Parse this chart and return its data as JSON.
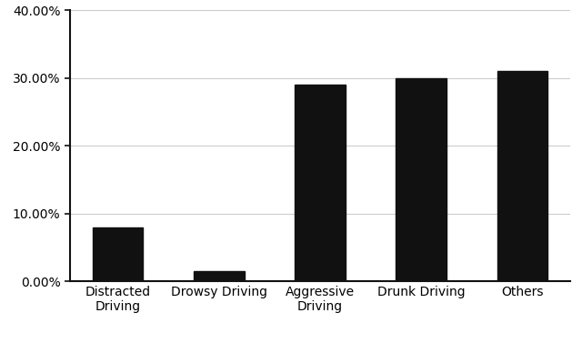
{
  "categories": [
    "Distracted\nDriving",
    "Drowsy Driving",
    "Aggressive\nDriving",
    "Drunk Driving",
    "Others"
  ],
  "values": [
    0.08,
    0.015,
    0.29,
    0.3,
    0.31
  ],
  "bar_color": "#111111",
  "background_color": "#ffffff",
  "ylim": [
    0,
    0.4
  ],
  "yticks": [
    0.0,
    0.1,
    0.2,
    0.3,
    0.4
  ],
  "ytick_labels": [
    "0.00%",
    "10.00%",
    "20.00%",
    "30.00%",
    "40.00%"
  ],
  "grid_color": "#cccccc",
  "tick_fontsize": 10,
  "xlabel_fontsize": 10,
  "bar_width": 0.5
}
